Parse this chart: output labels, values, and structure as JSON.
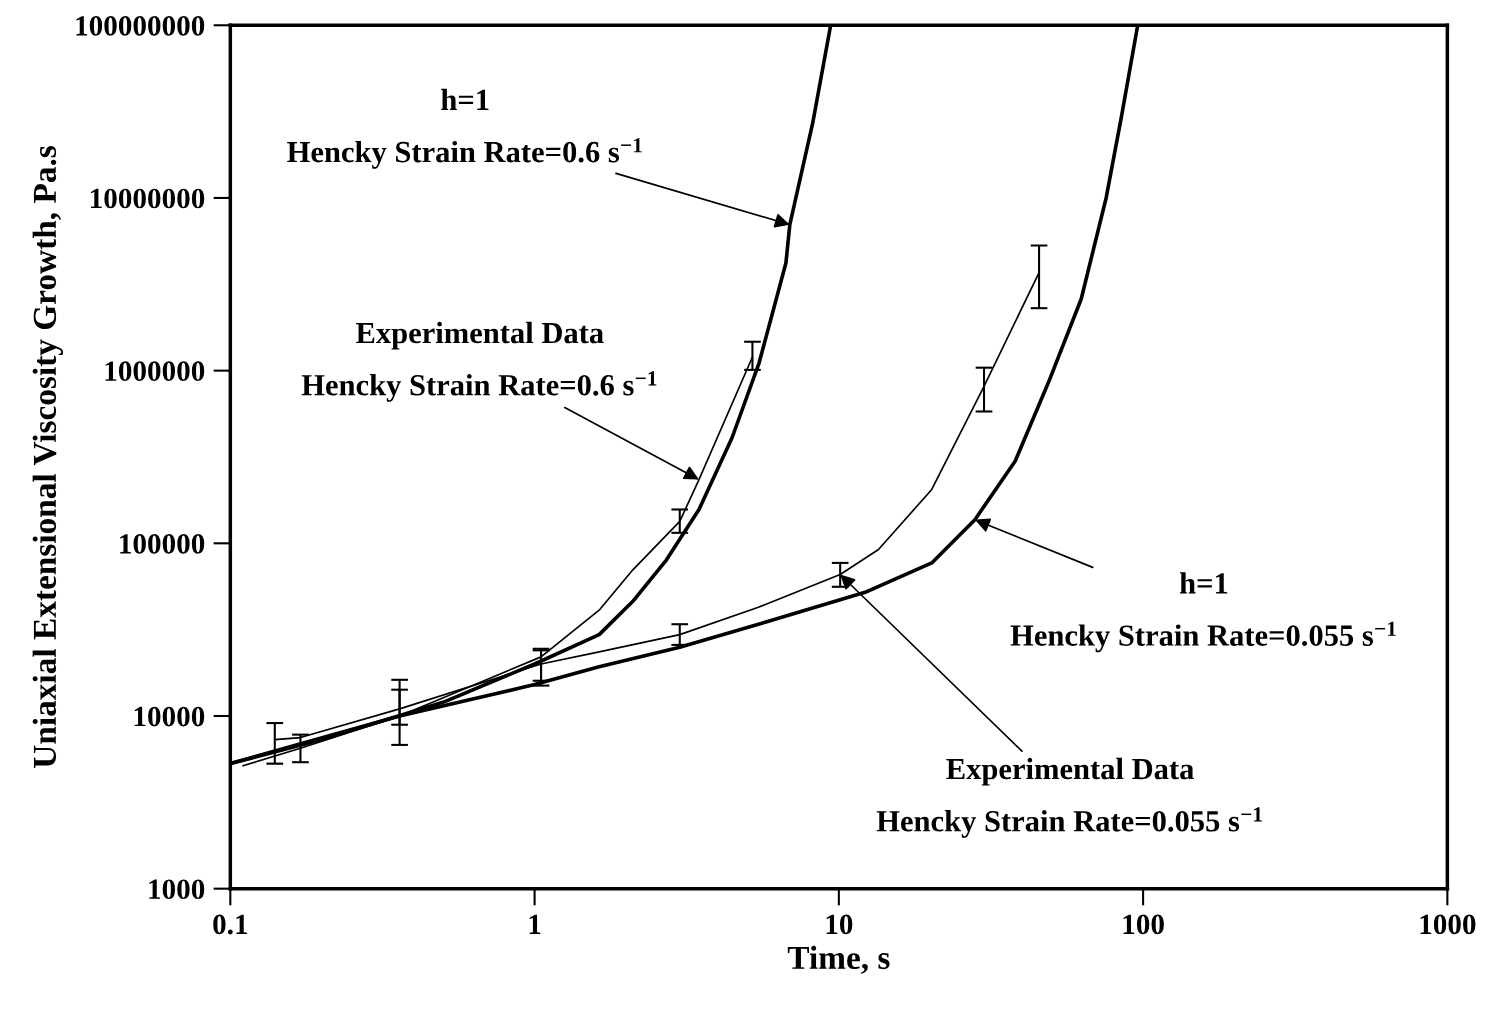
{
  "chart_data": {
    "type": "line",
    "xlabel": "Time, s",
    "ylabel": "Uniaxial Extensional Viscosity Growth, Pa.s",
    "log": "xy",
    "grid": false,
    "legend": false,
    "marker": "none",
    "line_style": "solid",
    "xlim": [
      0.1,
      1000
    ],
    "xticks": [
      0.1,
      1,
      10,
      100,
      1000
    ],
    "ylim": [
      1000,
      100000000
    ],
    "yticks": [
      1000,
      10000,
      100000,
      1000000,
      10000000,
      100000000
    ],
    "series": [
      {
        "color": "#000000",
        "x": [
          0.1,
          0.2,
          0.5,
          1,
          1.63,
          2.1,
          2.71,
          3.47,
          4.46,
          5.47,
          6.7,
          6.9,
          8.2,
          9.4
        ],
        "values": [
          5300,
          7300,
          12000,
          20000,
          29600,
          46000,
          80000,
          157000,
          410000,
          1110000,
          4200000,
          7000000,
          27000000,
          100000000
        ]
      },
      {
        "color": "#000000",
        "x": [
          0.1,
          0.36,
          1,
          1.63,
          3.0,
          5.76,
          12.2,
          20.2,
          28,
          38,
          48.8,
          62.6,
          75.6,
          85,
          96
        ],
        "values": [
          5300,
          10000,
          15200,
          19300,
          25000,
          35000,
          52000,
          77000,
          137000,
          300000,
          850000,
          2600000,
          10000000,
          30000000,
          100000000
        ]
      },
      {
        "color": "#000000",
        "x": [
          0.11,
          0.17,
          0.36,
          1.05,
          1.63,
          2.1,
          3.0,
          3.47,
          5.2
        ],
        "values": [
          5150,
          6500,
          10000,
          22000,
          41000,
          70000,
          134000,
          234000,
          1200000
        ],
        "errors": [
          null,
          [
            5400,
            7800
          ],
          [
            8900,
            14200
          ],
          [
            15000,
            24500
          ],
          null,
          null,
          [
            115000,
            157000
          ],
          null,
          [
            1010000,
            1470000
          ]
        ]
      },
      {
        "color": "#000000",
        "x": [
          0.14,
          0.17,
          0.36,
          1.05,
          1.63,
          3.0,
          5.47,
          10.1,
          13.5,
          20.2,
          30,
          45.5
        ],
        "values": [
          7300,
          7500,
          11000,
          20000,
          23500,
          29600,
          42800,
          66000,
          92000,
          205000,
          810000,
          3700000
        ],
        "errors": [
          [
            5300,
            9100
          ],
          null,
          [
            6800,
            16200
          ],
          [
            16000,
            24000
          ],
          null,
          [
            25800,
            34000
          ],
          null,
          [
            56000,
            77000
          ],
          null,
          null,
          [
            580000,
            1040000
          ],
          [
            2300000,
            5300000
          ]
        ]
      }
    ],
    "annotations": [
      {
        "text": "h=1\nHencky Strain Rate=0.6 s$^{−1}$",
        "x": 6.9,
        "y": 7000000
      },
      {
        "text": "Experimental Data\nHencky Strain Rate=0.6 s$^{−1}$",
        "x": 3.47,
        "y": 234000
      },
      {
        "text": "h=1\nHencky Strain Rate=0.055 s$^{−1}$",
        "x": 28,
        "y": 137000
      },
      {
        "text": "Experimental Data\nHencky Strain Rate=0.055 s$^{−1}$",
        "x": 10.1,
        "y": 66000
      }
    ]
  }
}
